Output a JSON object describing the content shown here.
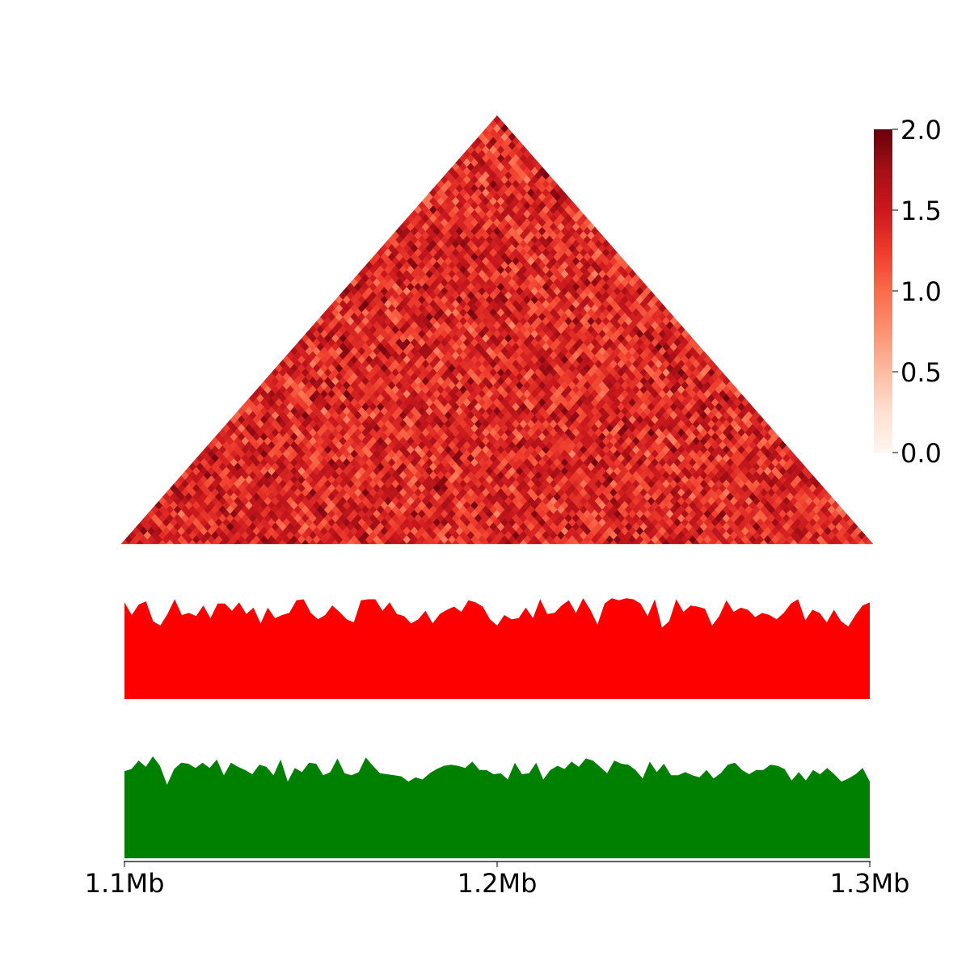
{
  "chart_data": {
    "type": "heatmap",
    "subtype": "triangular contact matrix with two signal area tracks",
    "heatmap": {
      "colormap": "Reds",
      "vmin": 0.0,
      "vmax": 2.0,
      "bins": 100,
      "value_range_observed": [
        0.8,
        2.0
      ],
      "colorbar": {
        "ticks": [
          "0.0",
          "0.5",
          "1.0",
          "1.5",
          "2.0"
        ],
        "tick_values": [
          0.0,
          0.5,
          1.0,
          1.5,
          2.0
        ],
        "placement": "right"
      }
    },
    "tracks": [
      {
        "type": "area",
        "color": "#ff0000",
        "ylim": [
          0,
          1
        ],
        "x_start_mb": 1.1,
        "x_end_mb": 1.3,
        "values": [
          0.92,
          0.8,
          0.9,
          0.93,
          0.74,
          0.7,
          0.81,
          0.95,
          0.8,
          0.82,
          0.79,
          0.89,
          0.77,
          0.91,
          0.91,
          0.84,
          0.92,
          0.81,
          0.87,
          0.72,
          0.87,
          0.77,
          0.8,
          0.82,
          0.94,
          0.95,
          0.82,
          0.76,
          0.8,
          0.89,
          0.83,
          0.76,
          0.73,
          0.94,
          0.95,
          0.95,
          0.84,
          0.92,
          0.81,
          0.79,
          0.72,
          0.76,
          0.84,
          0.72,
          0.81,
          0.85,
          0.88,
          0.83,
          0.94,
          0.92,
          0.88,
          0.76,
          0.7,
          0.8,
          0.76,
          0.77,
          0.87,
          0.77,
          0.95,
          0.81,
          0.82,
          0.89,
          0.94,
          0.82,
          0.96,
          0.85,
          0.71,
          0.91,
          0.96,
          0.94,
          0.96,
          0.95,
          0.91,
          0.79,
          0.95,
          0.68,
          0.74,
          0.95,
          0.83,
          0.89,
          0.88,
          0.86,
          0.7,
          0.79,
          0.94,
          0.83,
          0.87,
          0.85,
          0.78,
          0.82,
          0.8,
          0.76,
          0.82,
          0.91,
          0.95,
          0.75,
          0.85,
          0.82,
          0.73,
          0.85,
          0.74,
          0.69,
          0.8,
          0.89,
          0.92
        ]
      },
      {
        "type": "area",
        "color": "#008000",
        "ylim": [
          0,
          1
        ],
        "x_start_mb": 1.1,
        "x_end_mb": 1.3,
        "values": [
          0.83,
          0.85,
          0.93,
          0.87,
          0.97,
          0.88,
          0.7,
          0.85,
          0.91,
          0.9,
          0.86,
          0.91,
          0.86,
          0.94,
          0.79,
          0.91,
          0.87,
          0.84,
          0.8,
          0.89,
          0.87,
          0.79,
          0.94,
          0.73,
          0.86,
          0.82,
          0.91,
          0.9,
          0.79,
          0.82,
          0.95,
          0.81,
          0.79,
          0.82,
          0.96,
          0.88,
          0.81,
          0.8,
          0.79,
          0.78,
          0.73,
          0.77,
          0.75,
          0.81,
          0.85,
          0.88,
          0.89,
          0.88,
          0.86,
          0.92,
          0.84,
          0.84,
          0.8,
          0.81,
          0.75,
          0.91,
          0.8,
          0.81,
          0.91,
          0.75,
          0.84,
          0.88,
          0.85,
          0.92,
          0.87,
          0.95,
          0.93,
          0.87,
          0.81,
          0.93,
          0.9,
          0.89,
          0.84,
          0.76,
          0.92,
          0.82,
          0.9,
          0.79,
          0.79,
          0.82,
          0.79,
          0.77,
          0.84,
          0.76,
          0.81,
          0.89,
          0.91,
          0.84,
          0.8,
          0.84,
          0.84,
          0.89,
          0.88,
          0.85,
          0.74,
          0.82,
          0.74,
          0.84,
          0.8,
          0.86,
          0.8,
          0.73,
          0.76,
          0.8,
          0.86,
          0.73
        ]
      }
    ],
    "xaxis": {
      "range_mb": [
        1.1,
        1.3
      ],
      "ticks": [
        "1.1Mb",
        "1.2Mb",
        "1.3Mb"
      ],
      "tick_values_mb": [
        1.1,
        1.2,
        1.3
      ]
    }
  }
}
